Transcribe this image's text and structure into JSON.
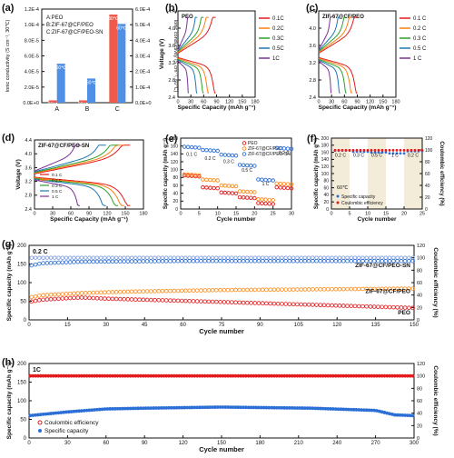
{
  "chart_data": [
    {
      "id": "a",
      "panel_label": "(a)",
      "type": "bar",
      "legend": [
        "A:PEO",
        "B:ZIF-67@CF/PEO",
        "C:ZIF-67@CF/PEO-SN"
      ],
      "categories": [
        "A",
        "B",
        "C"
      ],
      "ylabel_left": "Ionic conductivity (S cm⁻¹, 30℃)",
      "ylabel_right": "Ionic conductivity (S cm⁻¹, 60℃)",
      "ylim_left": [
        0,
        0.00012
      ],
      "ylim_right": [
        0,
        0.0006
      ],
      "yticks_left": [
        "0.0E+0",
        "2.0E-5",
        "4.0E-5",
        "6.0E-5",
        "8.0E-5",
        "1.0E-4",
        "1.2E-4"
      ],
      "yticks_right": [
        "0.0E+0",
        "1.0E-4",
        "2.0E-4",
        "3.0E-4",
        "4.0E-4",
        "5.0E-4",
        "6.0E-4"
      ],
      "series": [
        {
          "label": "30℃",
          "axis": "left",
          "color": "#ef5a4c",
          "values": [
            3e-06,
            3e-06,
            0.000113
          ]
        },
        {
          "label": "60℃",
          "axis": "right",
          "color": "#4f8fe6",
          "values": [
            0.00025,
            0.000155,
            0.000505
          ]
        }
      ]
    },
    {
      "id": "b",
      "panel_label": "(b)",
      "type": "line",
      "inset_title": "PEO",
      "xlabel": "Specific Capacity (mAh g⁻¹)",
      "ylabel": "Voltage (V)",
      "xlim": [
        0,
        180
      ],
      "ylim": [
        2.4,
        4.4
      ],
      "xticks": [
        "0",
        "30",
        "60",
        "90",
        "120",
        "150",
        "180"
      ],
      "yticks": [
        "2.4",
        "2.8",
        "3.2",
        "3.6",
        "4.0",
        "4.4"
      ],
      "series": [
        {
          "name": "0.1C",
          "color": "#e41a1c",
          "capacity": 88
        },
        {
          "name": "0.2C",
          "color": "#ff7f0e",
          "capacity": 72
        },
        {
          "name": "0.3C",
          "color": "#2ca02c",
          "capacity": 60
        },
        {
          "name": "0.5C",
          "color": "#1f77b4",
          "capacity": 45
        },
        {
          "name": "1C",
          "color": "#7b3294",
          "capacity": 25
        }
      ]
    },
    {
      "id": "c",
      "panel_label": "(c)",
      "type": "line",
      "inset_title": "ZIF-67@CF/PEO",
      "xlabel": "Specific Capacity (mAh g⁻¹)",
      "ylabel": "",
      "xlim": [
        0,
        180
      ],
      "ylim": [
        2.4,
        4.4
      ],
      "xticks": [
        "0",
        "30",
        "60",
        "90",
        "120",
        "150",
        "180"
      ],
      "yticks": [
        "2.4",
        "2.8",
        "3.2",
        "3.6",
        "4.0",
        "4.4"
      ],
      "series": [
        {
          "name": "0.1 C",
          "color": "#e41a1c",
          "capacity": 90
        },
        {
          "name": "0.2 C",
          "color": "#ff7f0e",
          "capacity": 78
        },
        {
          "name": "0.3 C",
          "color": "#2ca02c",
          "capacity": 65
        },
        {
          "name": "0.5 C",
          "color": "#1f77b4",
          "capacity": 50
        },
        {
          "name": "1 C",
          "color": "#7b3294",
          "capacity": 30
        }
      ]
    },
    {
      "id": "d",
      "panel_label": "(d)",
      "type": "line",
      "inset_title": "ZIF-67@CF/PEO-SN",
      "xlabel": "Specific Capacity (mAh g⁻¹)",
      "ylabel": "Voltage (V)",
      "xlim": [
        0,
        180
      ],
      "ylim": [
        2.4,
        4.4
      ],
      "xticks": [
        "0",
        "30",
        "60",
        "90",
        "120",
        "150",
        "180"
      ],
      "yticks": [
        "2.4",
        "2.8",
        "3.2",
        "3.6",
        "4.0",
        "4.4"
      ],
      "series": [
        {
          "name": "0.1 C",
          "color": "#e41a1c",
          "capacity": 158
        },
        {
          "name": "0.2 C",
          "color": "#ff7f0e",
          "capacity": 148
        },
        {
          "name": "0.3 C",
          "color": "#2ca02c",
          "capacity": 138
        },
        {
          "name": "0.5 C",
          "color": "#1f77b4",
          "capacity": 118
        },
        {
          "name": "1 C",
          "color": "#7b3294",
          "capacity": 75
        }
      ]
    },
    {
      "id": "e",
      "panel_label": "(e)",
      "type": "scatter",
      "xlabel": "Cycle number",
      "ylabel": "Specific capacity (mAh g⁻¹)",
      "xlim": [
        0,
        30
      ],
      "ylim": [
        0,
        180
      ],
      "xticks": [
        "0",
        "5",
        "10",
        "15",
        "20",
        "25",
        "30"
      ],
      "yticks": [
        "0",
        "20",
        "40",
        "60",
        "80",
        "100",
        "120",
        "140",
        "160",
        "180"
      ],
      "rate_labels": [
        {
          "text": "0.1 C",
          "x": 3,
          "y": 135
        },
        {
          "text": "0.2 C",
          "x": 8,
          "y": 125
        },
        {
          "text": "0.3 C",
          "x": 13,
          "y": 117
        },
        {
          "text": "0.5 C",
          "x": 18,
          "y": 95
        },
        {
          "text": "1 C",
          "x": 23,
          "y": 60
        },
        {
          "text": "0.2 C",
          "x": 28,
          "y": 138
        }
      ],
      "series": [
        {
          "name": "PEO",
          "color": "#e41a1c",
          "levels": [
            85,
            55,
            42,
            30,
            15,
            55
          ]
        },
        {
          "name": "ZIF-67@CF/PEO",
          "color": "#ff8c1a",
          "levels": [
            88,
            75,
            60,
            45,
            25,
            65
          ]
        },
        {
          "name": "ZIF-67@CF/PEO-SN",
          "color": "#2b6fd6",
          "levels": [
            158,
            150,
            138,
            112,
            75,
            155
          ]
        }
      ]
    },
    {
      "id": "f",
      "panel_label": "(f)",
      "type": "scatter",
      "inset_title": "60℃",
      "xlabel": "Cycle number",
      "ylabel": "Specific capacity (mAh g⁻¹)",
      "ylabel_right": "Coulombic efficiency (%)",
      "xlim": [
        0,
        25
      ],
      "ylim": [
        0,
        200
      ],
      "ylim_right": [
        0,
        120
      ],
      "xticks": [
        "0",
        "5",
        "10",
        "15",
        "20",
        "25"
      ],
      "yticks": [
        "0",
        "20",
        "40",
        "60",
        "80",
        "100",
        "120",
        "140",
        "160",
        "180",
        "200"
      ],
      "yticks_right": [
        "0",
        "20",
        "40",
        "60",
        "80",
        "100",
        "120"
      ],
      "rate_labels": [
        {
          "text": "0.2 C",
          "x": 2.5
        },
        {
          "text": "0.3 C",
          "x": 7.5
        },
        {
          "text": "0.5 C",
          "x": 12.5
        },
        {
          "text": "1 C",
          "x": 17.5
        },
        {
          "text": "0.2 C",
          "x": 22.5
        }
      ],
      "series": [
        {
          "name": "Specific capacity",
          "color": "#2b6fd6",
          "levels": [
            165,
            162,
            160,
            157,
            163
          ]
        },
        {
          "name": "Coulombic efficiency",
          "color": "#e41a1c",
          "value": 99.5
        }
      ]
    },
    {
      "id": "g",
      "panel_label": "(g)",
      "type": "scatter",
      "inset_title": "0.2 C",
      "xlabel": "Cycle number",
      "ylabel": "Specific capacity (mAh g⁻¹)",
      "ylabel_right": "Coulombic efficiency (%)",
      "xlim": [
        0,
        150
      ],
      "ylim": [
        0,
        200
      ],
      "ylim_right": [
        0,
        120
      ],
      "xticks": [
        "0",
        "15",
        "30",
        "45",
        "60",
        "75",
        "90",
        "105",
        "120",
        "135",
        "150"
      ],
      "yticks": [
        "0",
        "50",
        "100",
        "150",
        "200"
      ],
      "yticks_right": [
        "0",
        "20",
        "40",
        "60",
        "80",
        "100",
        "120"
      ],
      "series": [
        {
          "name": "ZIF-67@CF/PEO-SN",
          "color": "#2b6fd6",
          "capacity": [
            [
              0,
              145
            ],
            [
              5,
              152
            ],
            [
              20,
              156
            ],
            [
              60,
              158
            ],
            [
              100,
              158
            ],
            [
              150,
              158
            ]
          ],
          "ce": 100
        },
        {
          "name": "ZIF-67@CF/PEO",
          "color": "#ff8c1a",
          "capacity": [
            [
              0,
              60
            ],
            [
              5,
              66
            ],
            [
              20,
              72
            ],
            [
              40,
              76
            ],
            [
              75,
              80
            ],
            [
              150,
              84
            ]
          ],
          "ce": 100
        },
        {
          "name": "PEO",
          "color": "#e41a1c",
          "capacity": [
            [
              0,
              48
            ],
            [
              5,
              54
            ],
            [
              20,
              60
            ],
            [
              30,
              57
            ],
            [
              75,
              48
            ],
            [
              150,
              32
            ]
          ],
          "ce": 100
        }
      ]
    },
    {
      "id": "h",
      "panel_label": "(h)",
      "type": "scatter",
      "inset_title": "1C",
      "xlabel": "Cycle number",
      "ylabel": "Specific capacity (mAh g⁻¹)",
      "ylabel_right": "Coulombic efficiency (%)",
      "xlim": [
        0,
        300
      ],
      "ylim": [
        0,
        200
      ],
      "ylim_right": [
        0,
        120
      ],
      "xticks": [
        "0",
        "30",
        "60",
        "90",
        "120",
        "150",
        "180",
        "210",
        "240",
        "270",
        "300"
      ],
      "yticks": [
        "0",
        "50",
        "100",
        "150",
        "200"
      ],
      "yticks_right": [
        "0",
        "20",
        "40",
        "60",
        "80",
        "100",
        "120"
      ],
      "series": [
        {
          "name": "Coulombic efficiency",
          "color": "#e41a1c",
          "value": 100
        },
        {
          "name": "Specific capacity",
          "color": "#2b6fd6",
          "capacity": [
            [
              0,
              60
            ],
            [
              30,
              70
            ],
            [
              60,
              78
            ],
            [
              90,
              80
            ],
            [
              150,
              83
            ],
            [
              220,
              80
            ],
            [
              270,
              74
            ],
            [
              285,
              62
            ],
            [
              300,
              60
            ]
          ]
        }
      ]
    }
  ]
}
